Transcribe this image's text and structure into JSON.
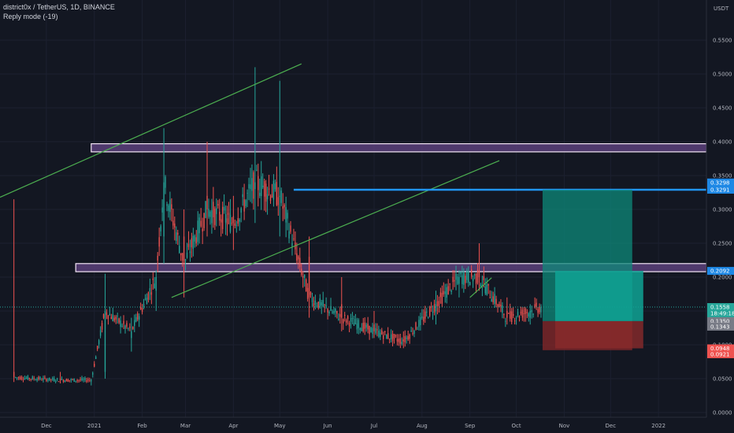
{
  "header": {
    "symbol_line": "district0x / TetherUS, 1D, BINANCE",
    "mode_line": "Reply mode (-19)"
  },
  "price_axis": {
    "currency": "USDT",
    "ticks": [
      "0.5500",
      "0.5000",
      "0.4500",
      "0.4000",
      "0.3500",
      "0.3000",
      "0.2500",
      "0.2000",
      "0.1500",
      "0.1000",
      "0.0500",
      "0.0000"
    ]
  },
  "time_axis": {
    "ticks": [
      "Dec",
      "2021",
      "Feb",
      "Mar",
      "Apr",
      "May",
      "Jun",
      "Jul",
      "Aug",
      "Sep",
      "Oct",
      "Nov",
      "Dec",
      "2022"
    ]
  },
  "price_tags": [
    {
      "id": "tag-target-1",
      "text": "0.3298",
      "color": "#1e88e5"
    },
    {
      "id": "tag-target-2",
      "text": "0.3291",
      "color": "#1e88e5"
    },
    {
      "id": "tag-zone",
      "text": "0.2092",
      "color": "#1e88e5"
    },
    {
      "id": "tag-last",
      "text": "0.1558",
      "color": "#26a69a"
    },
    {
      "id": "tag-countdown",
      "text": "18:49:18",
      "color": "#26a69a"
    },
    {
      "id": "tag-entry",
      "text": "0.1350",
      "color": "#787b86"
    },
    {
      "id": "tag-entry2",
      "text": "0.1343",
      "color": "#787b86"
    },
    {
      "id": "tag-stop-1",
      "text": "0.0948",
      "color": "#ef5350"
    },
    {
      "id": "tag-stop-2",
      "text": "0.0921",
      "color": "#ef5350"
    }
  ],
  "colors": {
    "background": "#131722",
    "bull": "#26a69a",
    "bear": "#ef5350",
    "trendline": "#4caf50",
    "zone_fill": "#5b3f7a",
    "zone_border": "#f3e5f5",
    "target_line": "#2196f3",
    "profit_fill": "#0e8a7a",
    "loss_fill": "#7a2628"
  },
  "chart_data": {
    "type": "candlestick",
    "symbol": "district0x / TetherUS",
    "interval": "1D",
    "exchange": "BINANCE",
    "ylim": [
      0,
      0.55
    ],
    "x_range": [
      "2020-11-01",
      "2022-02-01"
    ],
    "grid": true,
    "anchors": [
      {
        "date": "2020-11-10",
        "open": 0.06,
        "high": 0.315,
        "low": 0.045,
        "close": 0.052
      },
      {
        "date": "2020-12-10",
        "open": 0.05,
        "high": 0.06,
        "low": 0.043,
        "close": 0.048
      },
      {
        "date": "2020-12-30",
        "open": 0.046,
        "high": 0.05,
        "low": 0.04,
        "close": 0.048
      },
      {
        "date": "2021-01-08",
        "open": 0.06,
        "high": 0.205,
        "low": 0.05,
        "close": 0.15
      },
      {
        "date": "2021-01-25",
        "open": 0.11,
        "high": 0.14,
        "low": 0.09,
        "close": 0.12
      },
      {
        "date": "2021-02-10",
        "open": 0.18,
        "high": 0.21,
        "low": 0.15,
        "close": 0.2
      },
      {
        "date": "2021-02-15",
        "open": 0.26,
        "high": 0.42,
        "low": 0.22,
        "close": 0.34
      },
      {
        "date": "2021-02-28",
        "open": 0.26,
        "high": 0.3,
        "low": 0.17,
        "close": 0.22
      },
      {
        "date": "2021-03-15",
        "open": 0.32,
        "high": 0.4,
        "low": 0.26,
        "close": 0.3
      },
      {
        "date": "2021-04-01",
        "open": 0.29,
        "high": 0.32,
        "low": 0.24,
        "close": 0.28
      },
      {
        "date": "2021-04-15",
        "open": 0.33,
        "high": 0.51,
        "low": 0.28,
        "close": 0.34
      },
      {
        "date": "2021-05-01",
        "open": 0.32,
        "high": 0.49,
        "low": 0.26,
        "close": 0.32
      },
      {
        "date": "2021-05-20",
        "open": 0.23,
        "high": 0.26,
        "low": 0.14,
        "close": 0.17
      },
      {
        "date": "2021-06-10",
        "open": 0.16,
        "high": 0.2,
        "low": 0.12,
        "close": 0.14
      },
      {
        "date": "2021-07-01",
        "open": 0.13,
        "high": 0.15,
        "low": 0.11,
        "close": 0.12
      },
      {
        "date": "2021-07-20",
        "open": 0.108,
        "high": 0.12,
        "low": 0.095,
        "close": 0.105
      },
      {
        "date": "2021-08-10",
        "open": 0.15,
        "high": 0.18,
        "low": 0.13,
        "close": 0.16
      },
      {
        "date": "2021-08-25",
        "open": 0.19,
        "high": 0.21,
        "low": 0.17,
        "close": 0.2
      },
      {
        "date": "2021-09-07",
        "open": 0.21,
        "high": 0.25,
        "low": 0.18,
        "close": 0.2
      },
      {
        "date": "2021-09-25",
        "open": 0.15,
        "high": 0.17,
        "low": 0.13,
        "close": 0.14
      },
      {
        "date": "2021-10-10",
        "open": 0.14,
        "high": 0.16,
        "low": 0.13,
        "close": 0.15
      },
      {
        "date": "2021-10-17",
        "open": 0.148,
        "high": 0.16,
        "low": 0.14,
        "close": 0.1558
      }
    ],
    "zones": [
      {
        "name": "resistance zone",
        "from": 0.385,
        "to": 0.397
      },
      {
        "name": "support zone",
        "from": 0.208,
        "to": 0.22
      }
    ],
    "horizontal_lines": [
      {
        "value": 0.3291,
        "start": "2021-05-10"
      }
    ],
    "trendlines": [
      {
        "from": [
          "2020-11-01",
          0.318
        ],
        "to": [
          "2021-05-15",
          0.515
        ]
      },
      {
        "from": [
          "2021-02-20",
          0.17
        ],
        "to": [
          "2021-09-20",
          0.372
        ]
      },
      {
        "from": [
          "2021-09-01",
          0.17
        ],
        "to": [
          "2021-09-15",
          0.199
        ]
      }
    ],
    "position": {
      "entry": 0.135,
      "target": 0.3291,
      "stop": 0.0921,
      "start": "2021-10-18",
      "end": "2021-12-15"
    },
    "last_price": 0.1558
  }
}
